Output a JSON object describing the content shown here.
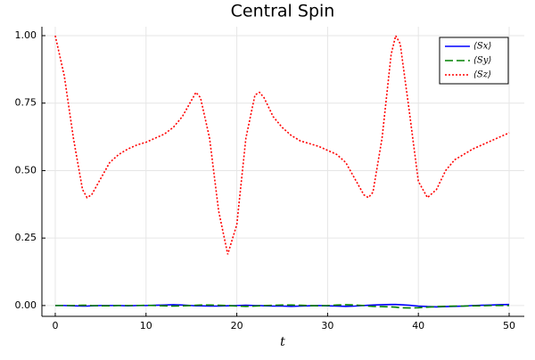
{
  "chart_data": {
    "type": "line",
    "title": "Central Spin",
    "xlabel": "t",
    "x": [
      0,
      1,
      2,
      3,
      3.5,
      4,
      5,
      6,
      7,
      8,
      9,
      10,
      11,
      12,
      13,
      14,
      15,
      15.5,
      16,
      17,
      18,
      19,
      20,
      21,
      22,
      22.5,
      23,
      24,
      25,
      26,
      27,
      28,
      29,
      30,
      31,
      32,
      33,
      34,
      34.5,
      35,
      36,
      37,
      37.5,
      38,
      39,
      40,
      41,
      42,
      43,
      44,
      45,
      46,
      47,
      48,
      49,
      50
    ],
    "series": [
      {
        "name": "⟨Sx⟩",
        "color": "#0000ff",
        "line_style": "solid",
        "values": [
          0,
          0,
          -0.001,
          -0.002,
          -0.002,
          -0.001,
          0,
          0,
          0,
          -0.001,
          0,
          0,
          0.001,
          0.002,
          0.003,
          0.002,
          0,
          -0.001,
          -0.001,
          -0.002,
          -0.002,
          -0.001,
          0,
          0.001,
          0,
          0,
          -0.001,
          -0.002,
          -0.002,
          -0.003,
          -0.002,
          -0.001,
          0,
          -0.001,
          -0.002,
          -0.003,
          -0.002,
          0,
          0.001,
          0.002,
          0.003,
          0.004,
          0.004,
          0.003,
          0.001,
          -0.002,
          -0.004,
          -0.005,
          -0.004,
          -0.003,
          -0.002,
          0,
          0.001,
          0.002,
          0.003,
          0.004
        ]
      },
      {
        "name": "⟨Sy⟩",
        "color": "#008000",
        "line_style": "dashed",
        "values": [
          0,
          0,
          0,
          0.001,
          0.001,
          0,
          -0.001,
          -0.001,
          0,
          0,
          0,
          0.001,
          0,
          -0.001,
          -0.002,
          -0.001,
          0,
          0.001,
          0.002,
          0.002,
          0.001,
          0,
          -0.002,
          -0.003,
          -0.002,
          -0.001,
          0,
          0.001,
          0.002,
          0.002,
          0.001,
          0,
          -0.001,
          0,
          0.002,
          0.003,
          0.002,
          0,
          -0.002,
          -0.003,
          -0.004,
          -0.005,
          -0.006,
          -0.008,
          -0.009,
          -0.008,
          -0.006,
          -0.004,
          -0.003,
          -0.002,
          -0.002,
          -0.001,
          -0.001,
          0,
          0,
          0
        ]
      },
      {
        "name": "⟨Sz⟩",
        "color": "#ff0000",
        "line_style": "dotted",
        "values": [
          1.0,
          0.85,
          0.62,
          0.43,
          0.4,
          0.41,
          0.47,
          0.53,
          0.56,
          0.58,
          0.595,
          0.605,
          0.62,
          0.635,
          0.66,
          0.7,
          0.76,
          0.79,
          0.77,
          0.62,
          0.35,
          0.19,
          0.3,
          0.62,
          0.78,
          0.79,
          0.77,
          0.7,
          0.66,
          0.63,
          0.61,
          0.6,
          0.59,
          0.575,
          0.56,
          0.53,
          0.47,
          0.41,
          0.4,
          0.42,
          0.62,
          0.93,
          1.0,
          0.97,
          0.72,
          0.46,
          0.4,
          0.43,
          0.5,
          0.54,
          0.56,
          0.58,
          0.595,
          0.61,
          0.625,
          0.64
        ]
      }
    ],
    "xlim": [
      -1.47,
      51.67
    ],
    "ylim": [
      -0.04,
      1.033
    ],
    "xticks": [
      0,
      10,
      20,
      30,
      40,
      50
    ],
    "yticks": [
      {
        "value": 0,
        "label": "0.00"
      },
      {
        "value": 0.25,
        "label": "0.25"
      },
      {
        "value": 0.5,
        "label": "0.50"
      },
      {
        "value": 0.75,
        "label": "0.75"
      },
      {
        "value": 1,
        "label": "1.00"
      }
    ],
    "grid": true,
    "legend": "top-right"
  }
}
